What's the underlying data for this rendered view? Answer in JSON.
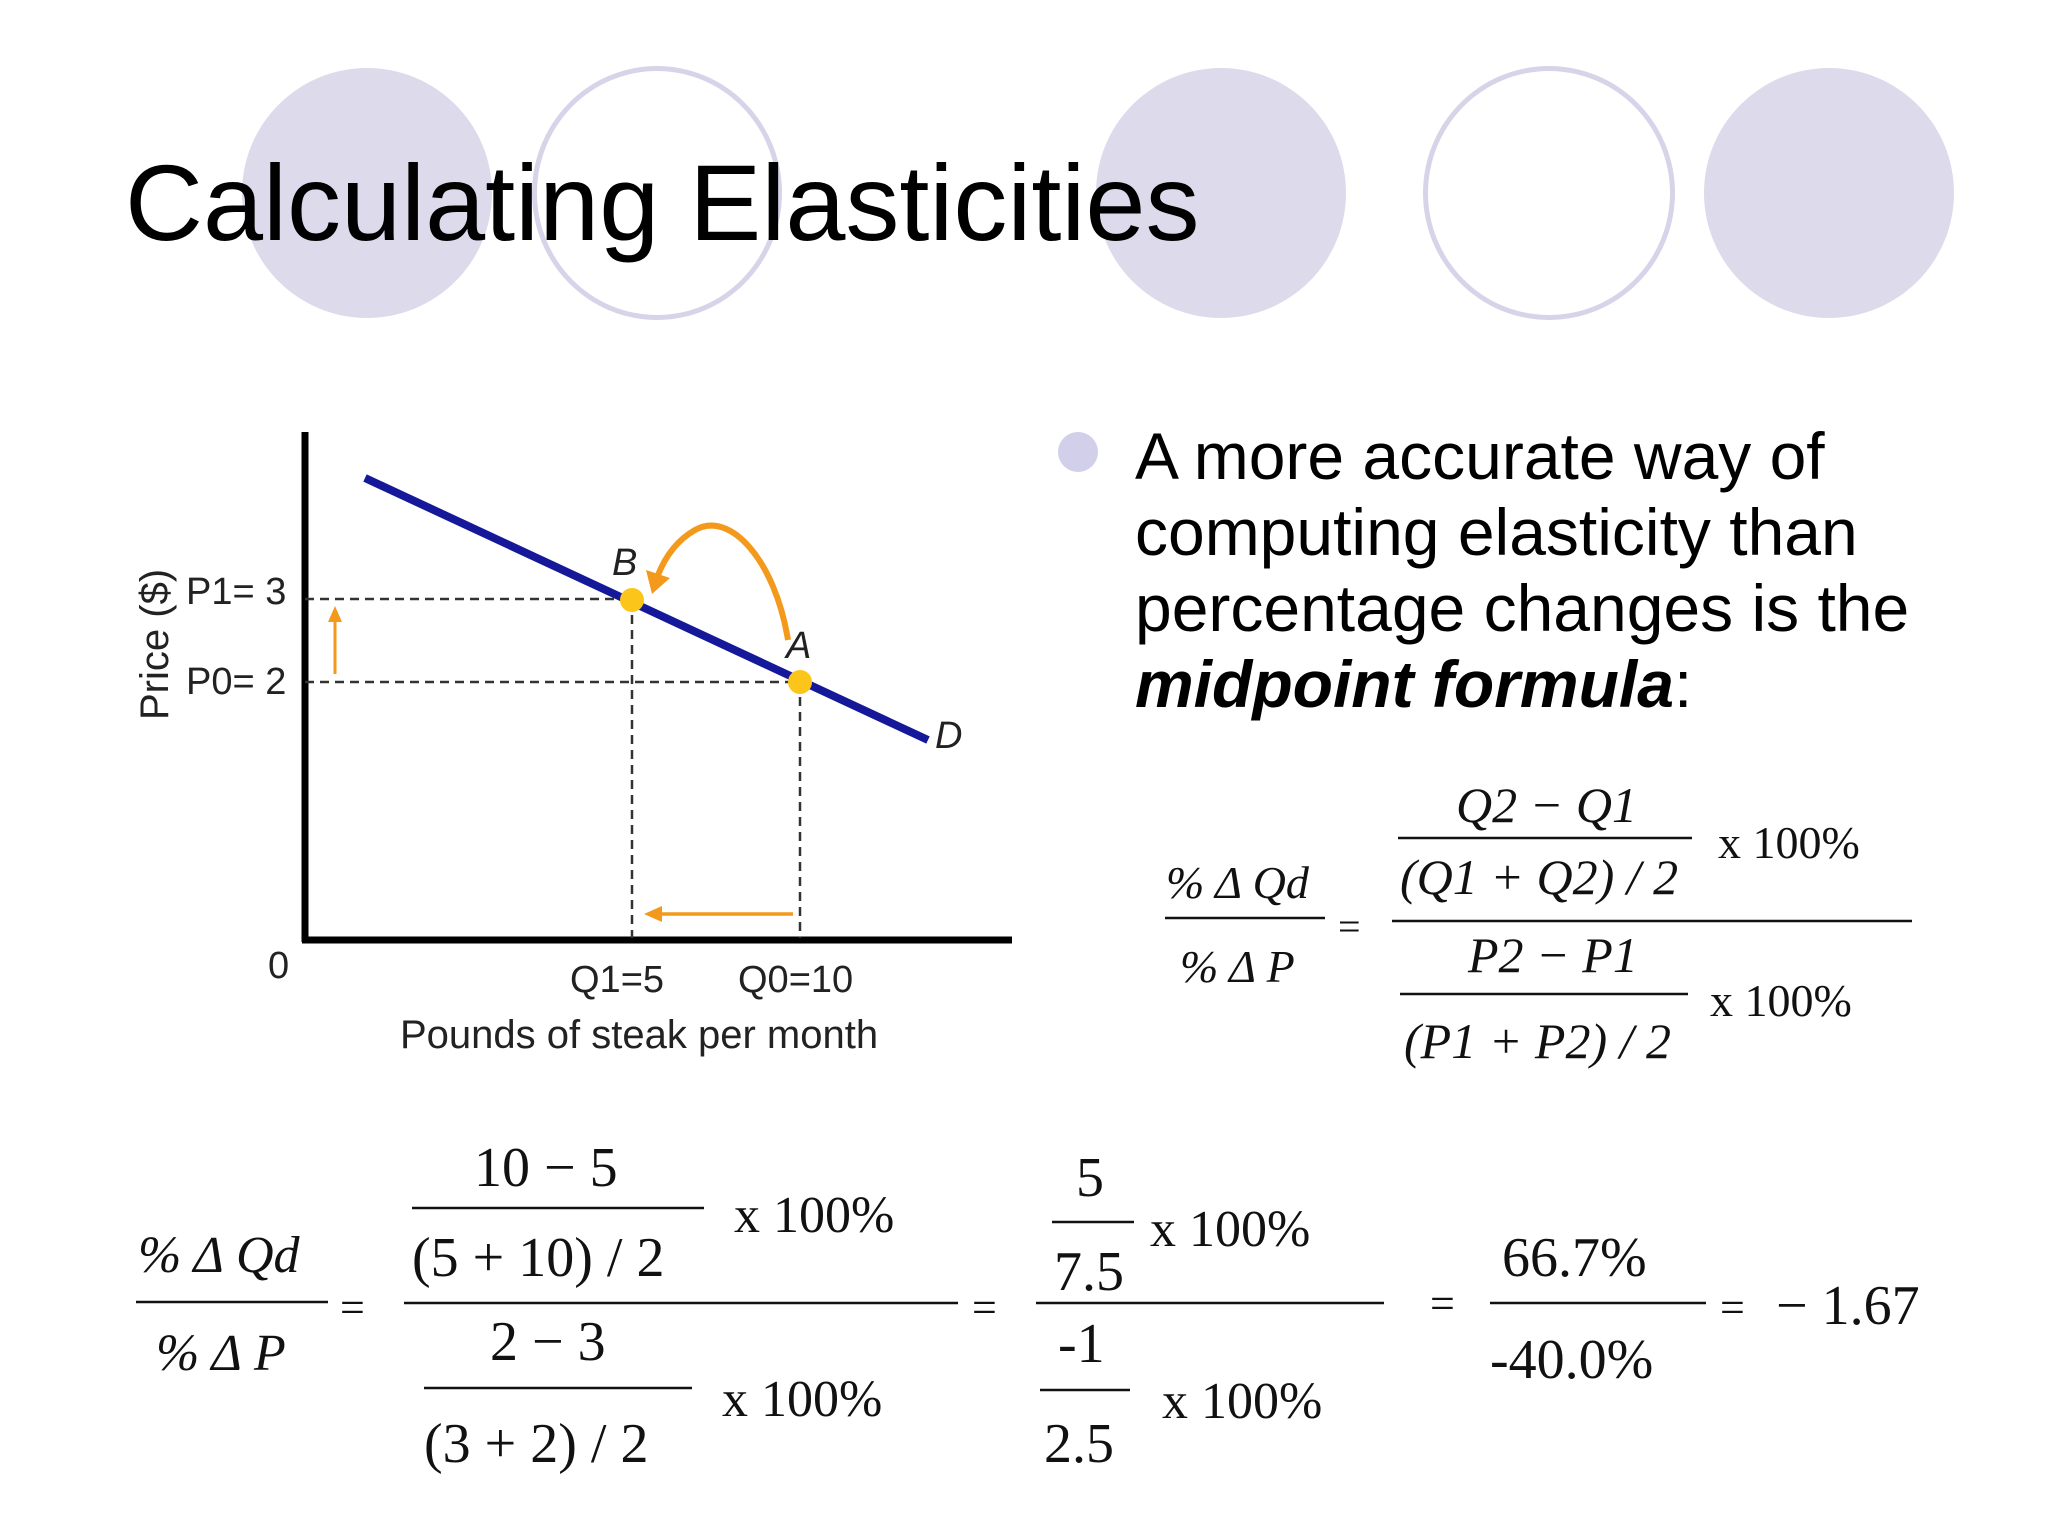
{
  "slide": {
    "title": "Calculating Elasticities",
    "bullet": {
      "text_before": "A more accurate way of computing elasticity than percentage changes is the ",
      "emphasis": "midpoint formula",
      "text_after": ":"
    }
  },
  "graph": {
    "y_axis_label": "Price ($)",
    "origin_label": "0",
    "x_axis_label": "Pounds of steak per month",
    "p1_label": "P1= 3",
    "p0_label": "P0= 2",
    "q1_label": "Q1=5",
    "q0_label": "Q0=10",
    "point_b": "B",
    "point_a": "A",
    "curve_label": "D",
    "colors": {
      "curve": "#16189a",
      "arrow": "#f39a1c",
      "point": "#fbc51a"
    }
  },
  "formula_general": {
    "lhs_num": "% Δ Qd",
    "lhs_den": "% Δ P",
    "num_top": "Q2 − Q1",
    "num_bottom": "(Q1 + Q2) / 2",
    "den_top": "P2 − P1",
    "den_bottom": "(P1 + P2) / 2",
    "times": "x 100%"
  },
  "formula_worked": {
    "lhs_num": "% Δ Qd",
    "lhs_den": "% Δ P",
    "step1_num_top": "10 − 5",
    "step1_num_bottom": "(5 + 10) / 2",
    "step1_den_top": "2 − 3",
    "step1_den_bottom": "(3 + 2) / 2",
    "step2_num_top": "5",
    "step2_num_bottom": "7.5",
    "step2_den_top": "-1",
    "step2_den_bottom": "2.5",
    "step3_num": "66.7%",
    "step3_den": "-40.0%",
    "result": "− 1.67",
    "times": "x 100%",
    "equals": "="
  }
}
